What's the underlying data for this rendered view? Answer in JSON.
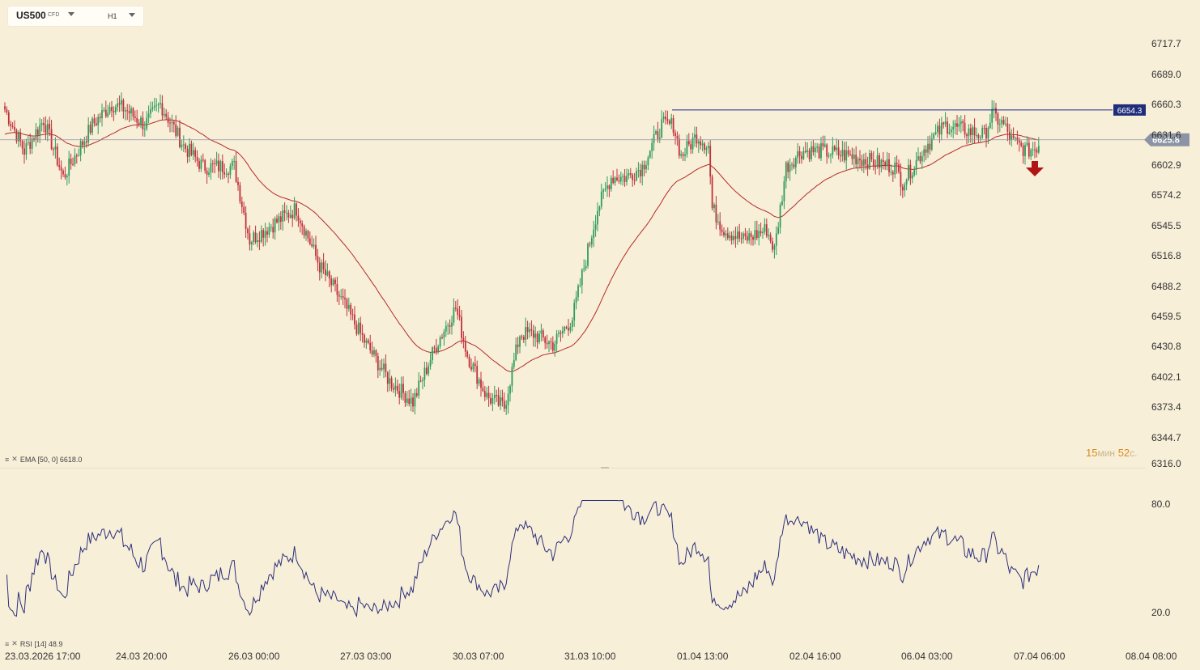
{
  "header": {
    "symbol": "US500",
    "symbol_type": "CFD",
    "timeframe": "H1"
  },
  "price_axis": {
    "ticks": [
      "6717.7",
      "6689.0",
      "6660.3",
      "6631.6",
      "6602.9",
      "6574.2",
      "6545.5",
      "6516.8",
      "6488.2",
      "6459.5",
      "6430.8",
      "6402.1",
      "6373.4",
      "6344.7",
      "6316.0"
    ],
    "hline_label": "6654.3",
    "current_label": "6625.8"
  },
  "rsi_axis": {
    "ticks": [
      "80.0",
      "20.0"
    ]
  },
  "time_axis": {
    "labels": [
      "23.03.2026 17:00",
      "24.03 20:00",
      "26.03 00:00",
      "27.03 03:00",
      "30.03 07:00",
      "31.03 10:00",
      "01.04 13:00",
      "02.04 16:00",
      "06.04 03:00",
      "07.04 06:00",
      "08.04 08:00"
    ]
  },
  "indicators": {
    "ema_label": "EMA [50, 0] 6618.0",
    "rsi_label": "RSI [14] 48.9"
  },
  "countdown": {
    "minutes": "15",
    "min_unit": "мин",
    "seconds": "52",
    "sec_unit": "с."
  },
  "colors": {
    "bull": "#2e9c5a",
    "bear": "#c0303b",
    "ema": "#b52a2a",
    "rsi": "#2b2f7a",
    "hline": "#1c2a8a",
    "signal_arrow": "#b01515"
  },
  "chart_data": {
    "type": "candlestick",
    "series": [
      {
        "name": "US500",
        "note": "H1 OHLC candles 23.03–07.04 (approximate close path)",
        "path_points": [
          [
            0,
            6655
          ],
          [
            10,
            6615
          ],
          [
            20,
            6645
          ],
          [
            30,
            6590
          ],
          [
            45,
            6640
          ],
          [
            55,
            6660
          ],
          [
            62,
            6655
          ],
          [
            72,
            6640
          ],
          [
            80,
            6660
          ],
          [
            92,
            6620
          ],
          [
            102,
            6600
          ],
          [
            118,
            6600
          ],
          [
            126,
            6530
          ],
          [
            138,
            6545
          ],
          [
            150,
            6560
          ],
          [
            162,
            6505
          ],
          [
            174,
            6470
          ],
          [
            186,
            6430
          ],
          [
            198,
            6395
          ],
          [
            210,
            6375
          ],
          [
            222,
            6430
          ],
          [
            232,
            6465
          ],
          [
            238,
            6420
          ],
          [
            248,
            6380
          ],
          [
            257,
            6370
          ],
          [
            265,
            6440
          ],
          [
            272,
            6440
          ],
          [
            282,
            6430
          ],
          [
            292,
            6455
          ],
          [
            300,
            6520
          ],
          [
            305,
            6560
          ],
          [
            312,
            6590
          ],
          [
            320,
            6590
          ],
          [
            328,
            6600
          ],
          [
            338,
            6640
          ],
          [
            344,
            6640
          ],
          [
            348,
            6610
          ],
          [
            356,
            6630
          ],
          [
            362,
            6620
          ],
          [
            364,
            6560
          ],
          [
            370,
            6540
          ],
          [
            380,
            6530
          ],
          [
            392,
            6540
          ],
          [
            396,
            6520
          ],
          [
            402,
            6600
          ],
          [
            410,
            6615
          ],
          [
            420,
            6615
          ],
          [
            436,
            6610
          ],
          [
            446,
            6605
          ],
          [
            458,
            6600
          ],
          [
            462,
            6585
          ],
          [
            474,
            6620
          ],
          [
            484,
            6640
          ],
          [
            494,
            6635
          ],
          [
            504,
            6630
          ],
          [
            508,
            6650
          ],
          [
            514,
            6640
          ],
          [
            518,
            6625
          ],
          [
            526,
            6615
          ],
          [
            532,
            6620
          ]
        ]
      }
    ],
    "ema_series": {
      "name": "EMA [50, 0]",
      "last_value": 6618.0
    },
    "hline": 6654.3,
    "current_price": 6625.8,
    "ylim": [
      6316.0,
      6717.7
    ],
    "rsi": {
      "name": "RSI [14]",
      "last_value": 48.9,
      "ylim": [
        20.0,
        80.0
      ]
    },
    "x_labels": [
      "23.03.2026 17:00",
      "24.03 20:00",
      "26.03 00:00",
      "27.03 03:00",
      "30.03 07:00",
      "31.03 10:00",
      "01.04 13:00",
      "02.04 16:00",
      "06.04 03:00",
      "07.04 06:00",
      "08.04 08:00"
    ]
  }
}
